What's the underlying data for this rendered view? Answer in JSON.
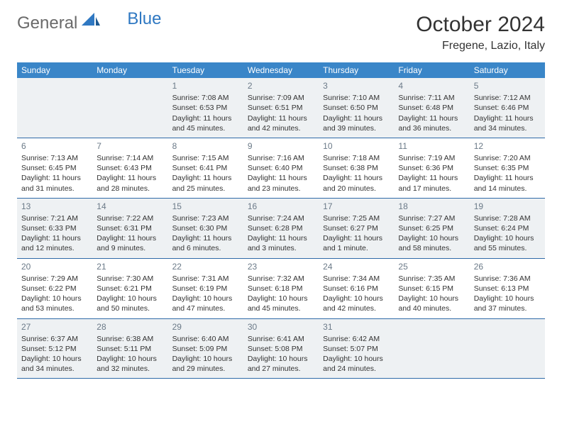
{
  "brand": {
    "part1": "General",
    "part2": "Blue"
  },
  "title": "October 2024",
  "location": "Fregene, Lazio, Italy",
  "colors": {
    "header_bg": "#3a86c8",
    "header_text": "#ffffff",
    "border": "#2f6aa8",
    "shade_bg": "#eef1f3",
    "text": "#333333",
    "daynum": "#6b7a88",
    "logo_gray": "#6a6a6a",
    "logo_blue": "#2f78c2"
  },
  "weekdays": [
    "Sunday",
    "Monday",
    "Tuesday",
    "Wednesday",
    "Thursday",
    "Friday",
    "Saturday"
  ],
  "weeks": [
    [
      null,
      null,
      {
        "n": "1",
        "sr": "Sunrise: 7:08 AM",
        "ss": "Sunset: 6:53 PM",
        "dl": "Daylight: 11 hours and 45 minutes."
      },
      {
        "n": "2",
        "sr": "Sunrise: 7:09 AM",
        "ss": "Sunset: 6:51 PM",
        "dl": "Daylight: 11 hours and 42 minutes."
      },
      {
        "n": "3",
        "sr": "Sunrise: 7:10 AM",
        "ss": "Sunset: 6:50 PM",
        "dl": "Daylight: 11 hours and 39 minutes."
      },
      {
        "n": "4",
        "sr": "Sunrise: 7:11 AM",
        "ss": "Sunset: 6:48 PM",
        "dl": "Daylight: 11 hours and 36 minutes."
      },
      {
        "n": "5",
        "sr": "Sunrise: 7:12 AM",
        "ss": "Sunset: 6:46 PM",
        "dl": "Daylight: 11 hours and 34 minutes."
      }
    ],
    [
      {
        "n": "6",
        "sr": "Sunrise: 7:13 AM",
        "ss": "Sunset: 6:45 PM",
        "dl": "Daylight: 11 hours and 31 minutes."
      },
      {
        "n": "7",
        "sr": "Sunrise: 7:14 AM",
        "ss": "Sunset: 6:43 PM",
        "dl": "Daylight: 11 hours and 28 minutes."
      },
      {
        "n": "8",
        "sr": "Sunrise: 7:15 AM",
        "ss": "Sunset: 6:41 PM",
        "dl": "Daylight: 11 hours and 25 minutes."
      },
      {
        "n": "9",
        "sr": "Sunrise: 7:16 AM",
        "ss": "Sunset: 6:40 PM",
        "dl": "Daylight: 11 hours and 23 minutes."
      },
      {
        "n": "10",
        "sr": "Sunrise: 7:18 AM",
        "ss": "Sunset: 6:38 PM",
        "dl": "Daylight: 11 hours and 20 minutes."
      },
      {
        "n": "11",
        "sr": "Sunrise: 7:19 AM",
        "ss": "Sunset: 6:36 PM",
        "dl": "Daylight: 11 hours and 17 minutes."
      },
      {
        "n": "12",
        "sr": "Sunrise: 7:20 AM",
        "ss": "Sunset: 6:35 PM",
        "dl": "Daylight: 11 hours and 14 minutes."
      }
    ],
    [
      {
        "n": "13",
        "sr": "Sunrise: 7:21 AM",
        "ss": "Sunset: 6:33 PM",
        "dl": "Daylight: 11 hours and 12 minutes."
      },
      {
        "n": "14",
        "sr": "Sunrise: 7:22 AM",
        "ss": "Sunset: 6:31 PM",
        "dl": "Daylight: 11 hours and 9 minutes."
      },
      {
        "n": "15",
        "sr": "Sunrise: 7:23 AM",
        "ss": "Sunset: 6:30 PM",
        "dl": "Daylight: 11 hours and 6 minutes."
      },
      {
        "n": "16",
        "sr": "Sunrise: 7:24 AM",
        "ss": "Sunset: 6:28 PM",
        "dl": "Daylight: 11 hours and 3 minutes."
      },
      {
        "n": "17",
        "sr": "Sunrise: 7:25 AM",
        "ss": "Sunset: 6:27 PM",
        "dl": "Daylight: 11 hours and 1 minute."
      },
      {
        "n": "18",
        "sr": "Sunrise: 7:27 AM",
        "ss": "Sunset: 6:25 PM",
        "dl": "Daylight: 10 hours and 58 minutes."
      },
      {
        "n": "19",
        "sr": "Sunrise: 7:28 AM",
        "ss": "Sunset: 6:24 PM",
        "dl": "Daylight: 10 hours and 55 minutes."
      }
    ],
    [
      {
        "n": "20",
        "sr": "Sunrise: 7:29 AM",
        "ss": "Sunset: 6:22 PM",
        "dl": "Daylight: 10 hours and 53 minutes."
      },
      {
        "n": "21",
        "sr": "Sunrise: 7:30 AM",
        "ss": "Sunset: 6:21 PM",
        "dl": "Daylight: 10 hours and 50 minutes."
      },
      {
        "n": "22",
        "sr": "Sunrise: 7:31 AM",
        "ss": "Sunset: 6:19 PM",
        "dl": "Daylight: 10 hours and 47 minutes."
      },
      {
        "n": "23",
        "sr": "Sunrise: 7:32 AM",
        "ss": "Sunset: 6:18 PM",
        "dl": "Daylight: 10 hours and 45 minutes."
      },
      {
        "n": "24",
        "sr": "Sunrise: 7:34 AM",
        "ss": "Sunset: 6:16 PM",
        "dl": "Daylight: 10 hours and 42 minutes."
      },
      {
        "n": "25",
        "sr": "Sunrise: 7:35 AM",
        "ss": "Sunset: 6:15 PM",
        "dl": "Daylight: 10 hours and 40 minutes."
      },
      {
        "n": "26",
        "sr": "Sunrise: 7:36 AM",
        "ss": "Sunset: 6:13 PM",
        "dl": "Daylight: 10 hours and 37 minutes."
      }
    ],
    [
      {
        "n": "27",
        "sr": "Sunrise: 6:37 AM",
        "ss": "Sunset: 5:12 PM",
        "dl": "Daylight: 10 hours and 34 minutes."
      },
      {
        "n": "28",
        "sr": "Sunrise: 6:38 AM",
        "ss": "Sunset: 5:11 PM",
        "dl": "Daylight: 10 hours and 32 minutes."
      },
      {
        "n": "29",
        "sr": "Sunrise: 6:40 AM",
        "ss": "Sunset: 5:09 PM",
        "dl": "Daylight: 10 hours and 29 minutes."
      },
      {
        "n": "30",
        "sr": "Sunrise: 6:41 AM",
        "ss": "Sunset: 5:08 PM",
        "dl": "Daylight: 10 hours and 27 minutes."
      },
      {
        "n": "31",
        "sr": "Sunrise: 6:42 AM",
        "ss": "Sunset: 5:07 PM",
        "dl": "Daylight: 10 hours and 24 minutes."
      },
      null,
      null
    ]
  ]
}
